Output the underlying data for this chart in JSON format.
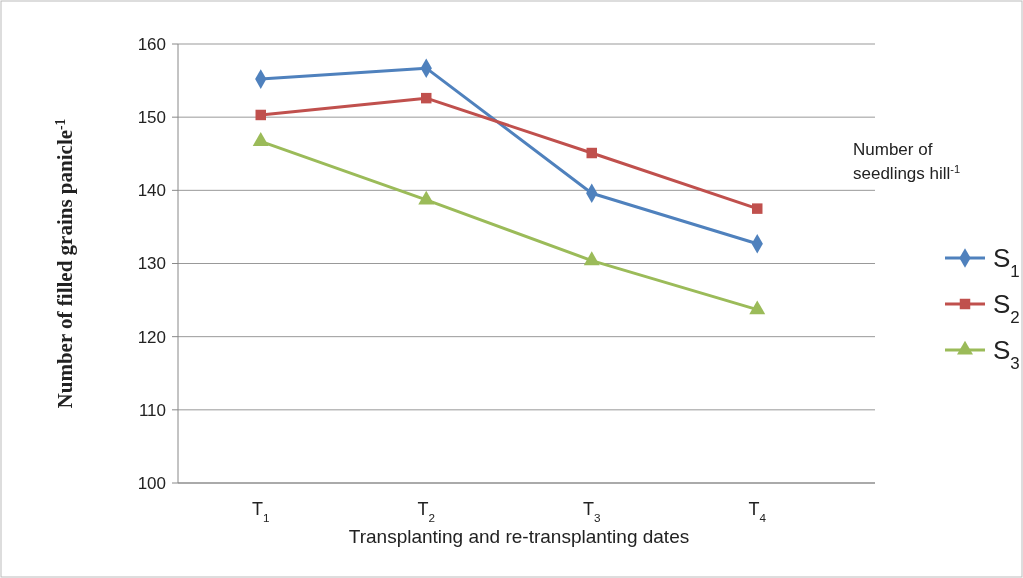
{
  "chart_data": {
    "type": "line",
    "xlabel": "Transplanting  and re-transplanting  dates",
    "ylabel": "Number of filled grains panicle$^{-1}$",
    "legend_title": "Number of seedlings hill$^{-1}$",
    "categories": [
      "T$_{1}$",
      "T$_{2}$",
      "T$_{3}$",
      "T$_{4}$"
    ],
    "series": [
      {
        "name": "S$_{1}$",
        "color": "#4f81bd",
        "marker": "diamond",
        "values": [
          155.2,
          156.7,
          139.6,
          132.7
        ]
      },
      {
        "name": "S$_{2}$",
        "color": "#c0504d",
        "marker": "square",
        "values": [
          150.3,
          152.6,
          145.1,
          137.5
        ]
      },
      {
        "name": "S$_{3}$",
        "color": "#9bbb59",
        "marker": "triangle",
        "values": [
          146.7,
          138.7,
          130.4,
          123.7
        ]
      }
    ],
    "ylim": [
      100,
      160
    ],
    "yticks": [
      100,
      110,
      120,
      130,
      140,
      150,
      160
    ],
    "grid": "y",
    "legend": "right"
  }
}
